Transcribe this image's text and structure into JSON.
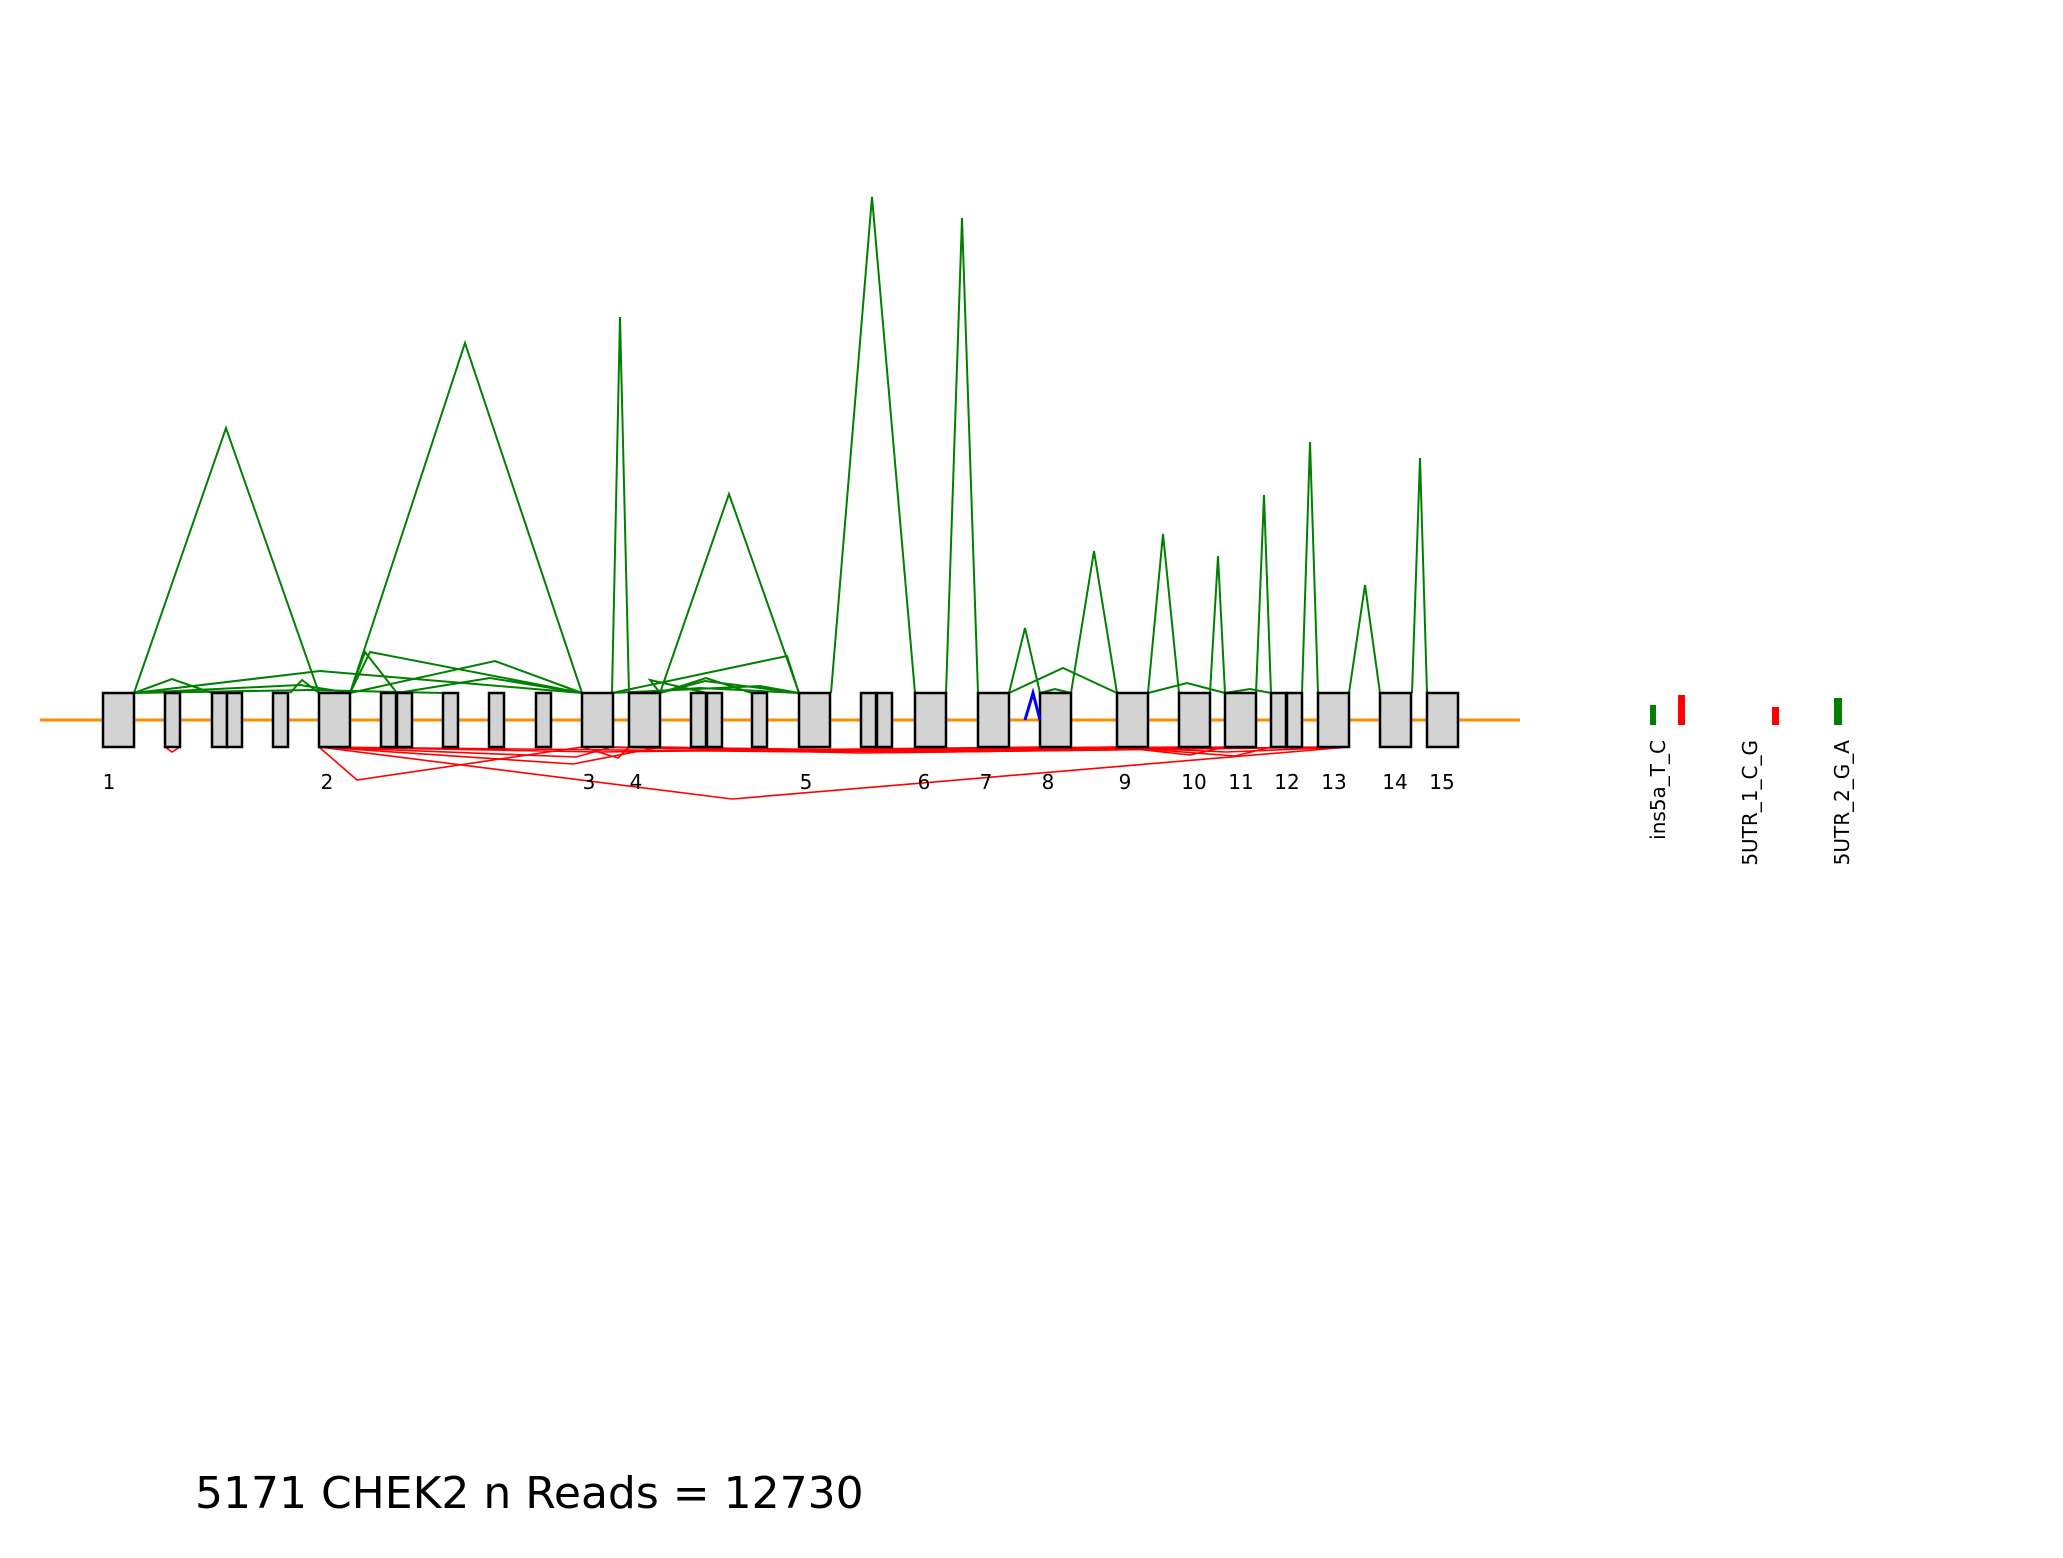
{
  "title": "5171 CHEK2 n Reads = 12730",
  "colors": {
    "backbone": "#ff8c00",
    "exon_fill": "#d3d3d3",
    "exon_stroke": "#000000",
    "junction_up": "#008000",
    "junction_down": "#ff0000",
    "highlight": "#0000ff"
  },
  "exon_numbers": [
    "1",
    "2",
    "3",
    "4",
    "5",
    "6",
    "7",
    "8",
    "9",
    "10",
    "11",
    "12",
    "13",
    "14",
    "15"
  ],
  "variants": [
    {
      "label": "ins5a_T_C",
      "marks": [
        "#008000",
        "#ff0000"
      ]
    },
    {
      "label": "5UTR_1_C_G",
      "marks": [
        "#ff0000"
      ]
    },
    {
      "label": "5UTR_2_G_A",
      "marks": [
        "#008000"
      ]
    }
  ]
}
